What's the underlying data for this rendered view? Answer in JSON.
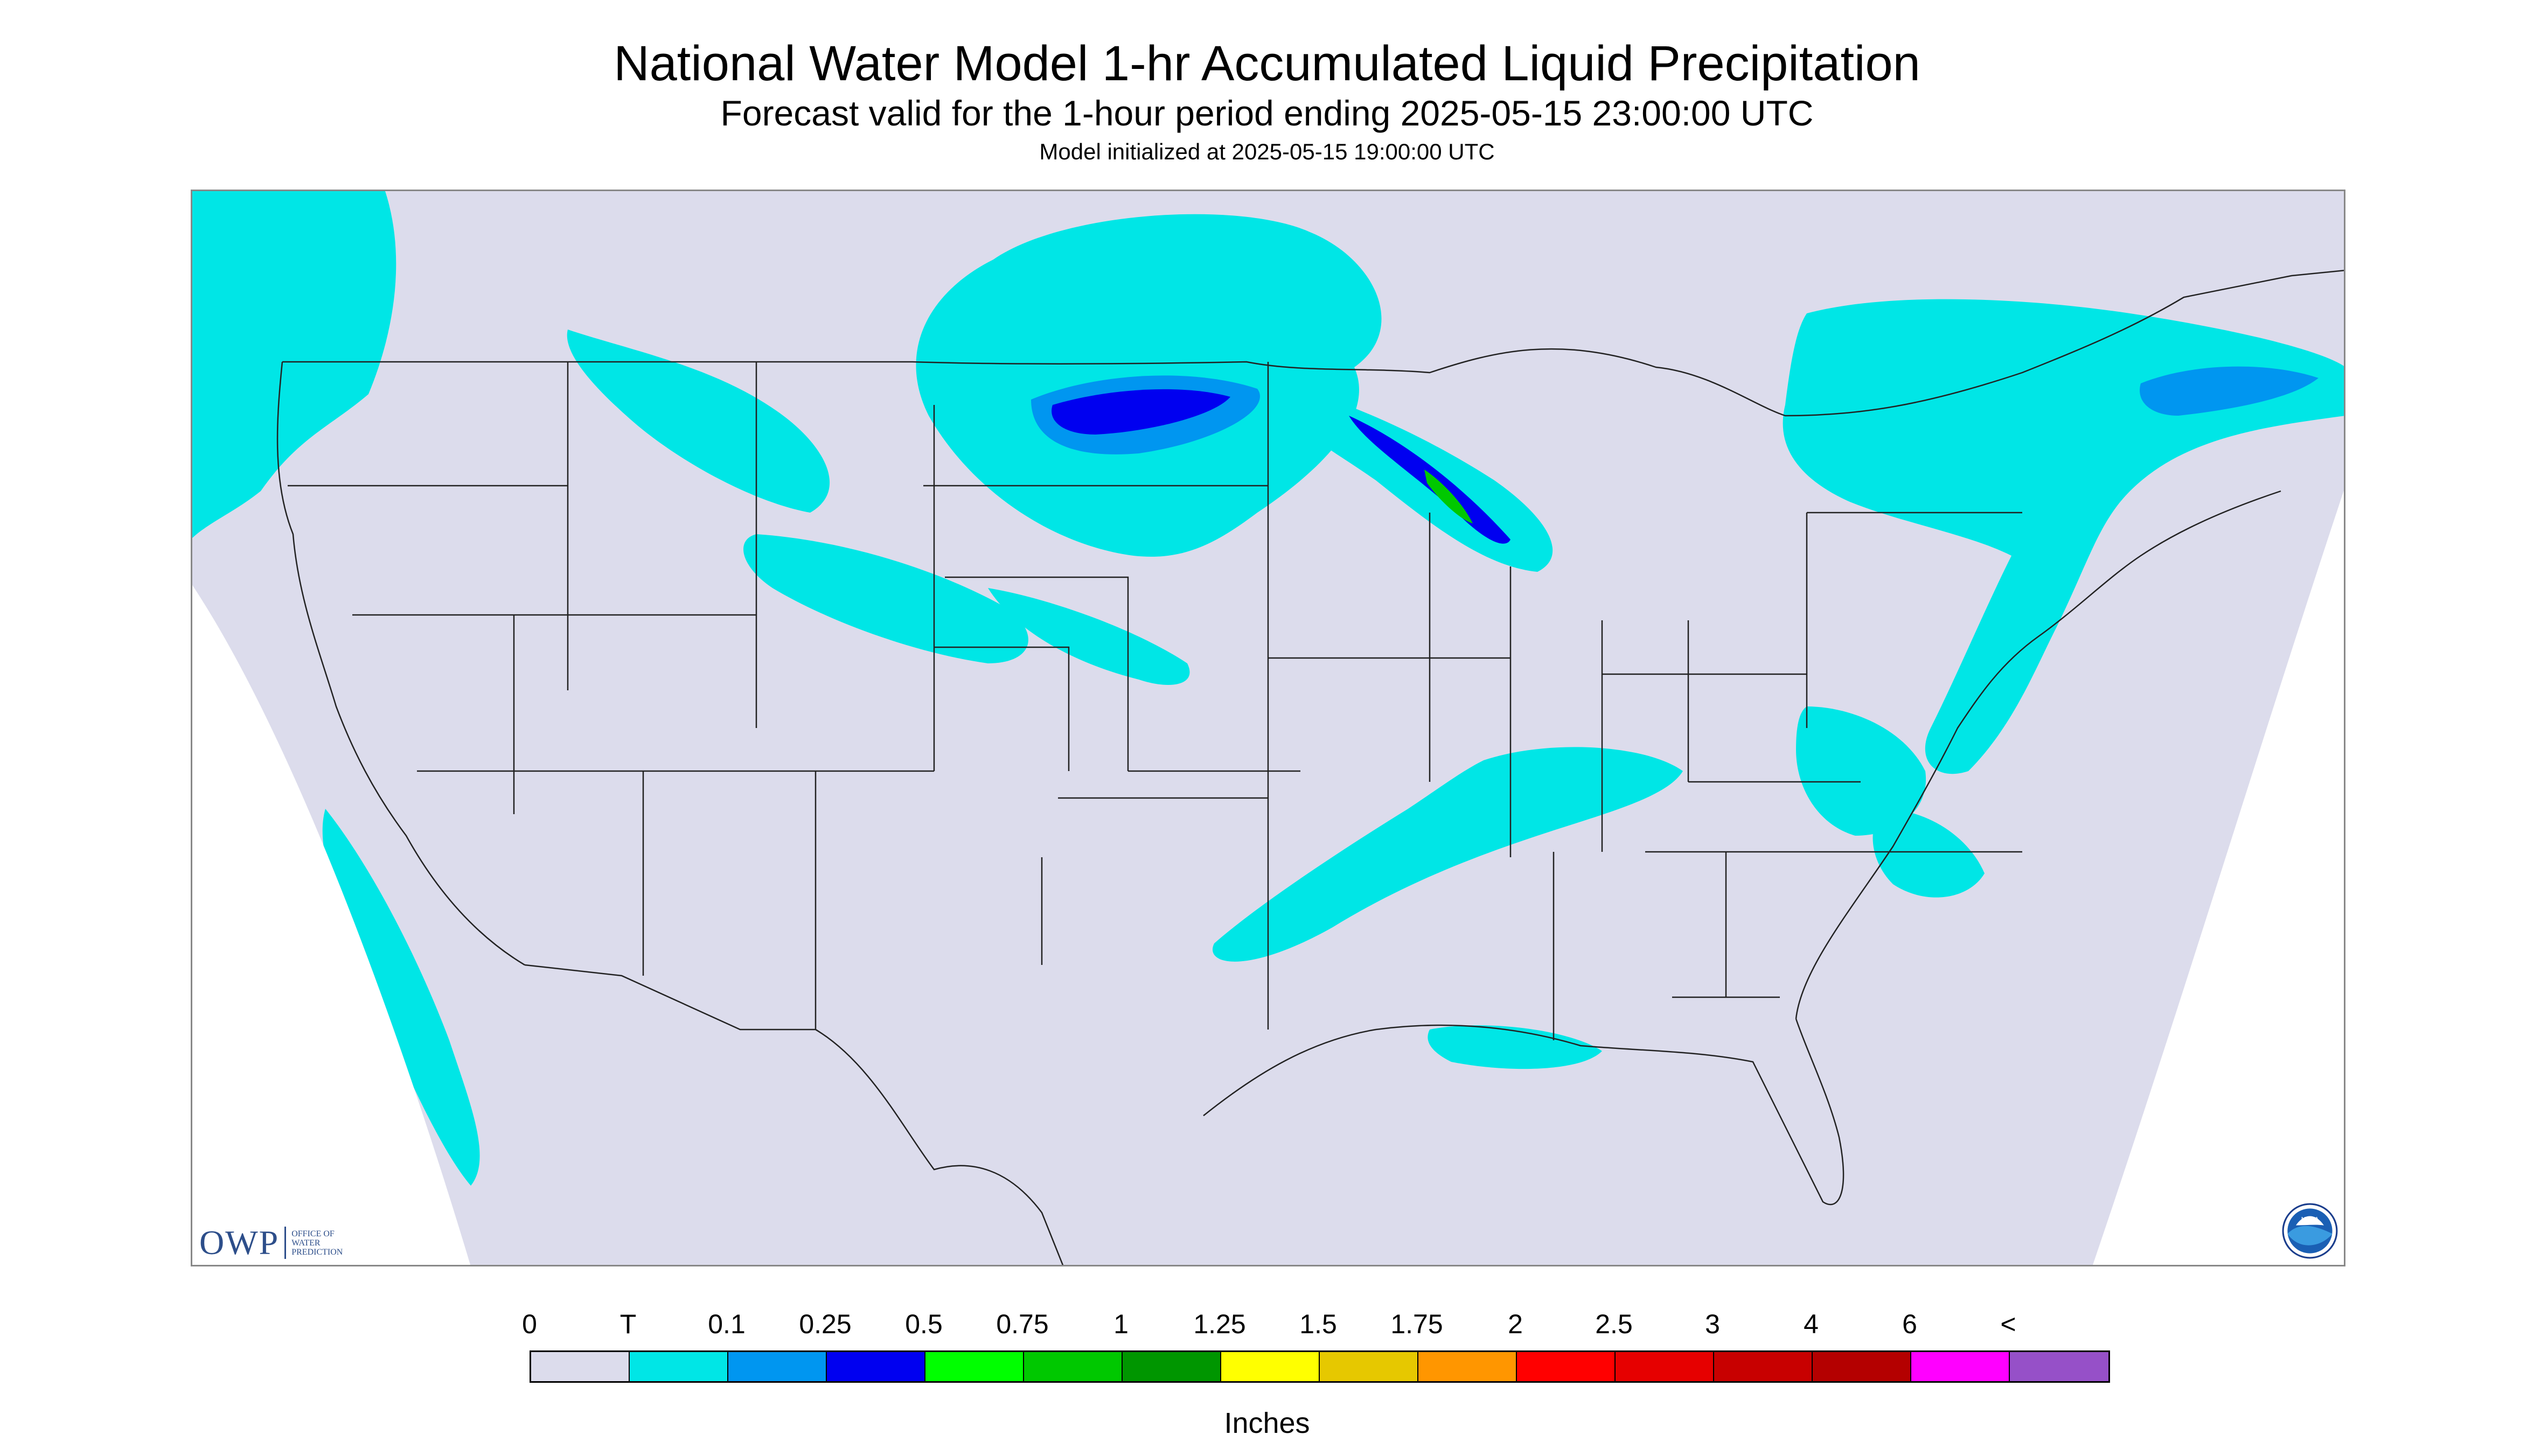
{
  "header": {
    "title": "National Water Model 1-hr Accumulated Liquid Precipitation",
    "subtitle": "Forecast valid for the 1-hour period ending 2025-05-15 23:00:00 UTC",
    "init": "Model initialized at 2025-05-15 19:00:00 UTC"
  },
  "map": {
    "background_color": "#dcdcec",
    "outside_domain_color": "#ffffff",
    "border_color": "#222222",
    "region": "Continental United States"
  },
  "legend": {
    "labels": [
      "0",
      "T",
      "0.1",
      "0.25",
      "0.5",
      "0.75",
      "1",
      "1.25",
      "1.5",
      "1.75",
      "2",
      "2.5",
      "3",
      "4",
      "6",
      "<"
    ],
    "colors": [
      "#dcdcec",
      "#00e6e6",
      "#0096f0",
      "#0000f0",
      "#00ff00",
      "#00c800",
      "#009600",
      "#ffff00",
      "#e6c800",
      "#ff9600",
      "#ff0000",
      "#e60000",
      "#c80000",
      "#b40000",
      "#ff00ff",
      "#9650c8"
    ],
    "units": "Inches"
  },
  "logos": {
    "owp_letters": "OWP",
    "owp_text": "OFFICE OF WATER PREDICTION",
    "noaa_text": "NOAA",
    "owp_icon": "owp-logo",
    "noaa_icon": "noaa-seal"
  }
}
